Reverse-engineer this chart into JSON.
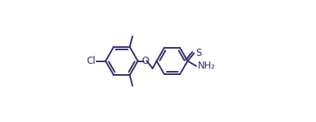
{
  "bg_color": "#ffffff",
  "line_color": "#2d2d6b",
  "line_width": 1.4,
  "font_size_label": 8.5,
  "figsize": [
    3.96,
    1.53
  ],
  "dpi": 100,
  "xlim": [
    -0.05,
    1.05
  ],
  "ylim": [
    0.05,
    0.95
  ]
}
